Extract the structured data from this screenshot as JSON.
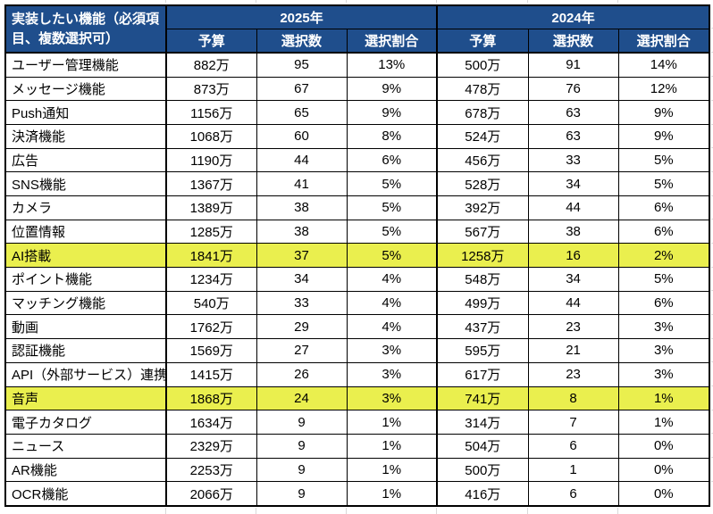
{
  "chart_data": {
    "type": "table",
    "title": "",
    "row_header": "実装したい機能（必須項目、複数選択可）",
    "column_groups": [
      "2025年",
      "2024年"
    ],
    "sub_columns": [
      "予算",
      "選択数",
      "選択割合"
    ],
    "highlighted_rows": [
      "AI搭載",
      "音声"
    ],
    "rows": [
      {
        "feature": "ユーザー管理機能",
        "cells": [
          "882万",
          "95",
          "13%",
          "500万",
          "91",
          "14%"
        ],
        "highlight": false
      },
      {
        "feature": "メッセージ機能",
        "cells": [
          "873万",
          "67",
          "9%",
          "478万",
          "76",
          "12%"
        ],
        "highlight": false
      },
      {
        "feature": "Push通知",
        "cells": [
          "1156万",
          "65",
          "9%",
          "678万",
          "63",
          "9%"
        ],
        "highlight": false
      },
      {
        "feature": "決済機能",
        "cells": [
          "1068万",
          "60",
          "8%",
          "524万",
          "63",
          "9%"
        ],
        "highlight": false
      },
      {
        "feature": "広告",
        "cells": [
          "1190万",
          "44",
          "6%",
          "456万",
          "33",
          "5%"
        ],
        "highlight": false
      },
      {
        "feature": "SNS機能",
        "cells": [
          "1367万",
          "41",
          "5%",
          "528万",
          "34",
          "5%"
        ],
        "highlight": false
      },
      {
        "feature": "カメラ",
        "cells": [
          "1389万",
          "38",
          "5%",
          "392万",
          "44",
          "6%"
        ],
        "highlight": false
      },
      {
        "feature": "位置情報",
        "cells": [
          "1285万",
          "38",
          "5%",
          "567万",
          "38",
          "6%"
        ],
        "highlight": false
      },
      {
        "feature": "AI搭載",
        "cells": [
          "1841万",
          "37",
          "5%",
          "1258万",
          "16",
          "2%"
        ],
        "highlight": true
      },
      {
        "feature": "ポイント機能",
        "cells": [
          "1234万",
          "34",
          "4%",
          "548万",
          "34",
          "5%"
        ],
        "highlight": false
      },
      {
        "feature": "マッチング機能",
        "cells": [
          "540万",
          "33",
          "4%",
          "499万",
          "44",
          "6%"
        ],
        "highlight": false
      },
      {
        "feature": "動画",
        "cells": [
          "1762万",
          "29",
          "4%",
          "437万",
          "23",
          "3%"
        ],
        "highlight": false
      },
      {
        "feature": "認証機能",
        "cells": [
          "1569万",
          "27",
          "3%",
          "595万",
          "21",
          "3%"
        ],
        "highlight": false
      },
      {
        "feature": "API（外部サービス）連携",
        "cells": [
          "1415万",
          "26",
          "3%",
          "617万",
          "23",
          "3%"
        ],
        "highlight": false
      },
      {
        "feature": "音声",
        "cells": [
          "1868万",
          "24",
          "3%",
          "741万",
          "8",
          "1%"
        ],
        "highlight": true
      },
      {
        "feature": "電子カタログ",
        "cells": [
          "1634万",
          "9",
          "1%",
          "314万",
          "7",
          "1%"
        ],
        "highlight": false
      },
      {
        "feature": "ニュース",
        "cells": [
          "2329万",
          "9",
          "1%",
          "504万",
          "6",
          "0%"
        ],
        "highlight": false
      },
      {
        "feature": "AR機能",
        "cells": [
          "2253万",
          "9",
          "1%",
          "500万",
          "1",
          "0%"
        ],
        "highlight": false
      },
      {
        "feature": "OCR機能",
        "cells": [
          "2066万",
          "9",
          "1%",
          "416万",
          "6",
          "0%"
        ],
        "highlight": false
      }
    ]
  },
  "colors": {
    "header_bg": "#1F4E8C",
    "header_text": "#FFFFFF",
    "highlight": "#EAEF4E",
    "border": "#000000",
    "body_text": "#000000",
    "gridline": "#D9D9D9"
  }
}
